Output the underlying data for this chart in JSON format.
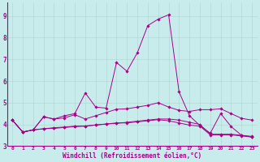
{
  "xlabel": "Windchill (Refroidissement éolien,°C)",
  "bg_color": "#c8ecec",
  "grid_color": "#b0d4d4",
  "line_color": "#aa0088",
  "xlim": [
    -0.5,
    23.5
  ],
  "ylim": [
    3.0,
    9.6
  ],
  "xticks": [
    0,
    1,
    2,
    3,
    4,
    5,
    6,
    7,
    8,
    9,
    10,
    11,
    12,
    13,
    14,
    15,
    16,
    17,
    18,
    19,
    20,
    21,
    22,
    23
  ],
  "yticks": [
    3,
    4,
    5,
    6,
    7,
    8,
    9
  ],
  "lines": [
    [
      4.2,
      3.65,
      3.75,
      4.35,
      4.25,
      4.4,
      4.5,
      5.45,
      4.8,
      4.75,
      6.85,
      6.45,
      7.3,
      8.55,
      8.85,
      9.05,
      5.5,
      4.4,
      3.95,
      3.6,
      4.5,
      3.9,
      3.5,
      3.45
    ],
    [
      4.2,
      3.65,
      3.75,
      4.35,
      4.25,
      4.3,
      4.45,
      4.25,
      4.4,
      4.55,
      4.7,
      4.72,
      4.8,
      4.88,
      5.0,
      4.8,
      4.65,
      4.6,
      4.68,
      4.68,
      4.72,
      4.5,
      4.28,
      4.2
    ],
    [
      4.2,
      3.65,
      3.75,
      3.8,
      3.85,
      3.88,
      3.92,
      3.92,
      3.97,
      4.02,
      4.07,
      4.07,
      4.12,
      4.17,
      4.22,
      4.17,
      4.07,
      3.97,
      3.92,
      3.52,
      3.52,
      3.52,
      3.47,
      3.42
    ],
    [
      4.2,
      3.65,
      3.75,
      3.8,
      3.82,
      3.86,
      3.9,
      3.93,
      3.98,
      4.02,
      4.05,
      4.1,
      4.15,
      4.2,
      4.25,
      4.25,
      4.2,
      4.1,
      4.0,
      3.55,
      3.55,
      3.55,
      3.5,
      3.42
    ]
  ]
}
